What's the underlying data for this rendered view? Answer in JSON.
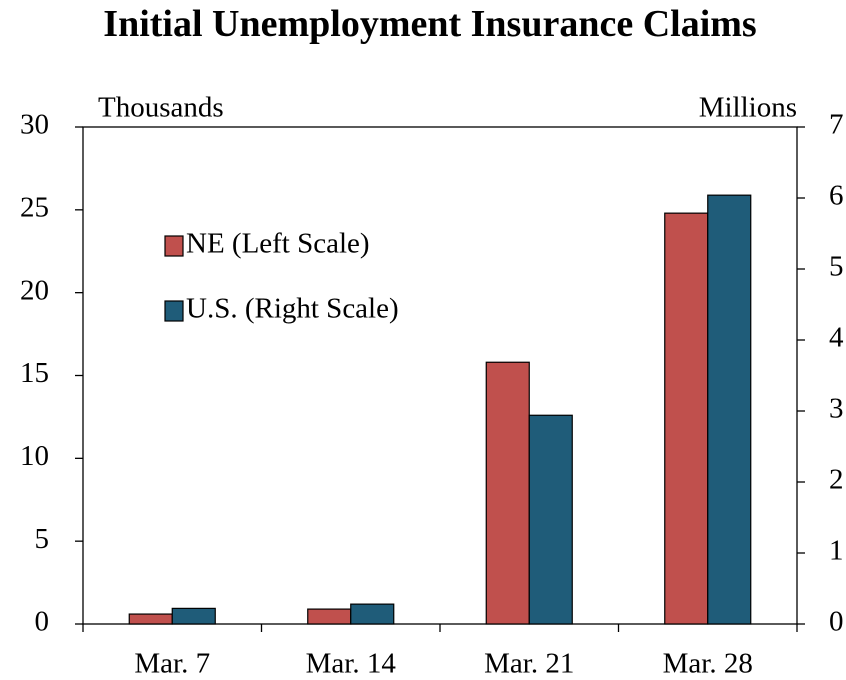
{
  "chart_data": {
    "type": "bar",
    "title": "Initial Unemployment Insurance Claims",
    "ylabel": "Thousands",
    "y2label": "Millions",
    "categories": [
      "Mar. 7",
      "Mar. 14",
      "Mar. 21",
      "Mar. 28"
    ],
    "series": [
      {
        "name": "NE (Left Scale)",
        "color": "#c0504d",
        "values": [
          0.6,
          0.9,
          15.8,
          24.8
        ]
      },
      {
        "name": "U.S. (Right Scale)",
        "color": "#1f5c79",
        "axis": "y2",
        "values": [
          0.22,
          0.28,
          2.94,
          6.04
        ]
      }
    ],
    "ylim": [
      0,
      30
    ],
    "yticks": [
      0,
      5,
      10,
      15,
      20,
      25,
      30
    ],
    "y2lim": [
      0,
      7
    ],
    "y2ticks": [
      0,
      1,
      2,
      3,
      4,
      5,
      6,
      7
    ]
  }
}
